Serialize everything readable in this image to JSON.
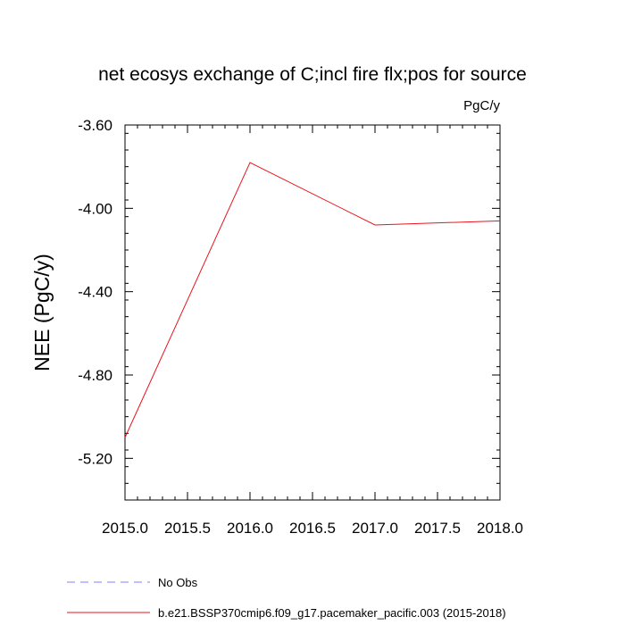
{
  "chart_data": {
    "type": "line",
    "title": "net ecosys exchange of C;incl fire flx;pos for source",
    "units": "PgC/y",
    "ylabel": "NEE  (PgC/y)",
    "xlabel": "",
    "xlim": [
      2015.0,
      2018.0
    ],
    "ylim": [
      -5.4,
      -3.6
    ],
    "xticks": [
      2015.0,
      2015.5,
      2016.0,
      2016.5,
      2017.0,
      2017.5,
      2018.0
    ],
    "xtick_labels": [
      "2015.0",
      "2015.5",
      "2016.0",
      "2016.5",
      "2017.0",
      "2017.5",
      "2018.0"
    ],
    "yticks": [
      -5.2,
      -4.8,
      -4.4,
      -4.0,
      -3.6
    ],
    "ytick_labels": [
      "-5.20",
      "-4.80",
      "-4.40",
      "-4.00",
      "-3.60"
    ],
    "grid": false,
    "legend_position": "bottom-left",
    "series": [
      {
        "name": "No Obs",
        "color": "#8080ff",
        "dash": "dashed",
        "x": [],
        "y": []
      },
      {
        "name": "b.e21.BSSP370cmip6.f09_g17.pacemaker_pacific.003 (2015-2018)",
        "color": "#e8141c",
        "dash": "solid",
        "x": [
          2015.0,
          2016.0,
          2017.0,
          2018.0
        ],
        "y": [
          -5.1,
          -3.78,
          -4.08,
          -4.06
        ]
      }
    ]
  }
}
